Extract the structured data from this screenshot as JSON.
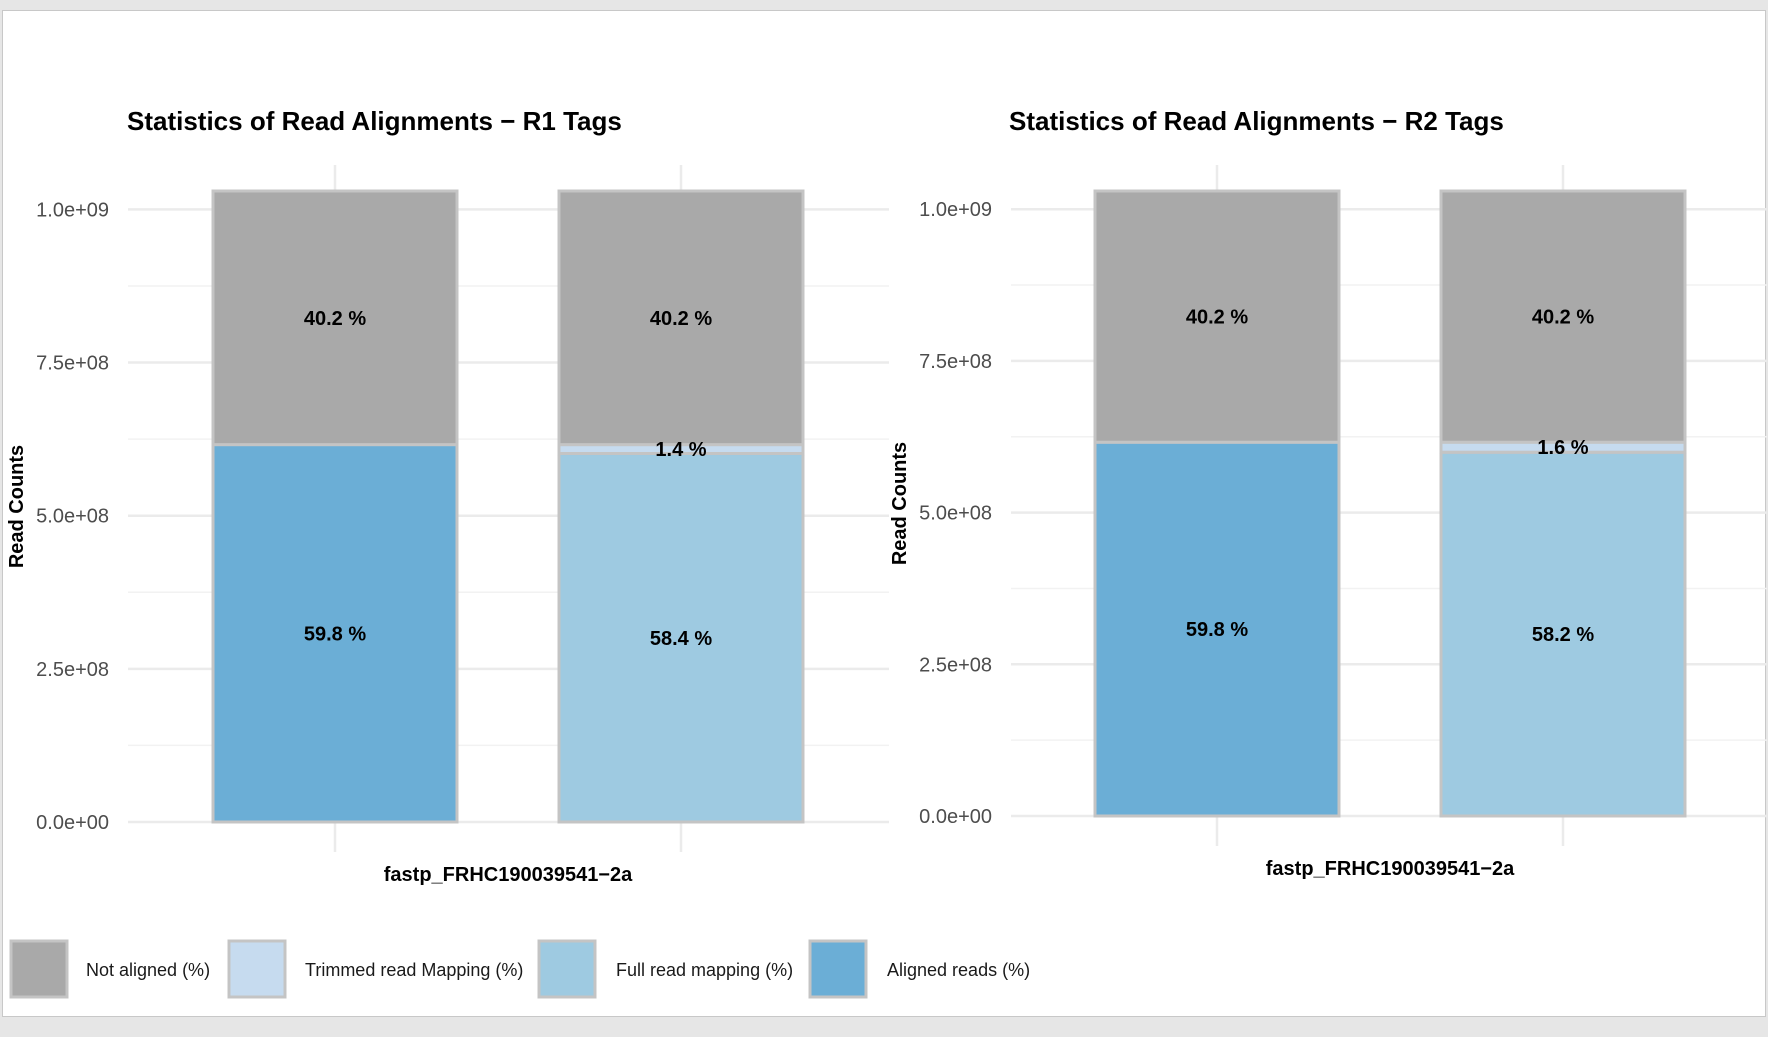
{
  "colors": {
    "not_aligned": "#a9a9a9",
    "trimmed": "#c6dbef",
    "full": "#9ecae1",
    "aligned": "#6baed6",
    "bar_border": "#c4c4c4",
    "grid_major": "#ebebeb",
    "grid_minor": "#f2f2f2"
  },
  "legend": [
    {
      "key": "not_aligned",
      "label": "Not aligned (%)"
    },
    {
      "key": "trimmed",
      "label": "Trimmed read Mapping (%)"
    },
    {
      "key": "full",
      "label": "Full read mapping (%)"
    },
    {
      "key": "aligned",
      "label": "Aligned reads (%)"
    }
  ],
  "chart_data": [
    {
      "type": "bar",
      "stacked": true,
      "title": "Statistics of Read Alignments − R1 Tags",
      "xlabel": "fastp_FRHC190039541−2a",
      "ylabel": "Read Counts",
      "ylim": [
        0,
        1030000000
      ],
      "yticks": [
        0,
        250000000,
        500000000,
        750000000,
        1000000000
      ],
      "ytick_labels": [
        "0.0e+00",
        "2.5e+08",
        "5.0e+08",
        "7.5e+08",
        "1.0e+09"
      ],
      "bars": [
        {
          "segments": [
            {
              "key": "aligned",
              "value": 616000000,
              "label": "59.8 %"
            },
            {
              "key": "not_aligned",
              "value": 414000000,
              "label": "40.2 %"
            }
          ]
        },
        {
          "segments": [
            {
              "key": "full",
              "value": 601500000,
              "label": "58.4 %"
            },
            {
              "key": "trimmed",
              "value": 14500000,
              "label": "1.4 %"
            },
            {
              "key": "not_aligned",
              "value": 414000000,
              "label": "40.2 %"
            }
          ]
        }
      ]
    },
    {
      "type": "bar",
      "stacked": true,
      "title": "Statistics of Read Alignments − R2 Tags",
      "xlabel": "fastp_FRHC190039541−2a",
      "ylabel": "Read Counts",
      "ylim": [
        0,
        1030000000
      ],
      "yticks": [
        0,
        250000000,
        500000000,
        750000000,
        1000000000
      ],
      "ytick_labels": [
        "0.0e+00",
        "2.5e+08",
        "5.0e+08",
        "7.5e+08",
        "1.0e+09"
      ],
      "bars": [
        {
          "segments": [
            {
              "key": "aligned",
              "value": 616000000,
              "label": "59.8 %"
            },
            {
              "key": "not_aligned",
              "value": 414000000,
              "label": "40.2 %"
            }
          ]
        },
        {
          "segments": [
            {
              "key": "full",
              "value": 599500000,
              "label": "58.2 %"
            },
            {
              "key": "trimmed",
              "value": 16500000,
              "label": "1.6 %"
            },
            {
              "key": "not_aligned",
              "value": 414000000,
              "label": "40.2 %"
            }
          ]
        }
      ]
    }
  ]
}
